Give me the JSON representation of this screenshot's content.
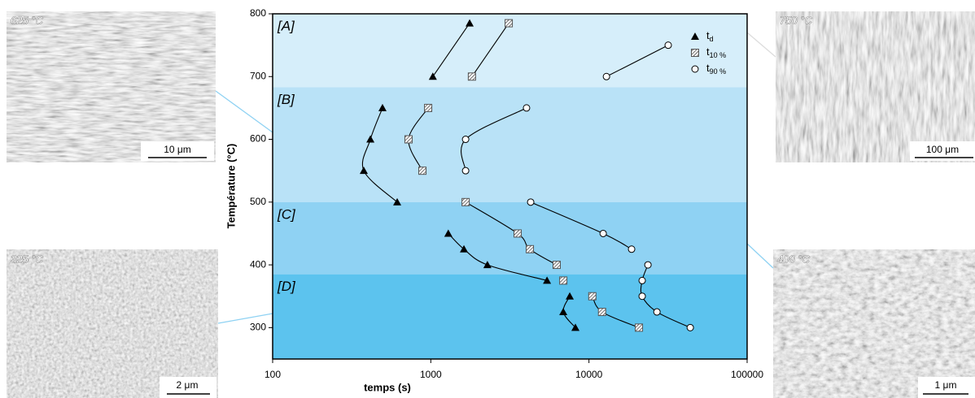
{
  "chart_data": {
    "type": "scatter",
    "xlabel": "temps (s)",
    "ylabel": "Température (°C)",
    "xscale": "log",
    "xlim": [
      100,
      100000
    ],
    "xticks": [
      100,
      1000,
      10000,
      100000
    ],
    "ylim": [
      250,
      800
    ],
    "yticks": [
      300,
      400,
      500,
      600,
      700,
      800
    ],
    "legend": "upper right",
    "regions": [
      {
        "label": "[A]",
        "range": [
          683,
          800
        ],
        "color": "#d6eefa"
      },
      {
        "label": "[B]",
        "range": [
          500,
          683
        ],
        "color": "#b9e2f7"
      },
      {
        "label": "[C]",
        "range": [
          385,
          500
        ],
        "color": "#8fd2f3"
      },
      {
        "label": "[D]",
        "range": [
          250,
          385
        ],
        "color": "#5cc3ee"
      }
    ],
    "series": [
      {
        "name": "t",
        "subscript": "d",
        "marker": "triangle",
        "color": "#000000",
        "x": [
          1760,
          1030,
          495,
          415,
          377,
          613,
          1290,
          1620,
          2280,
          5430,
          7560,
          6880,
          8210
        ],
        "values": [
          785,
          700,
          650,
          600,
          550,
          500,
          450,
          425,
          400,
          375,
          350,
          325,
          300
        ]
      },
      {
        "name": "t",
        "subscript": "10 %",
        "marker": "square",
        "color": "#555555",
        "x": [
          3110,
          1820,
          962,
          723,
          885,
          1660,
          3540,
          4230,
          6250,
          6880,
          10500,
          12100,
          20700
        ],
        "values": [
          785,
          700,
          650,
          600,
          550,
          500,
          450,
          425,
          400,
          375,
          350,
          325,
          300
        ]
      },
      {
        "name": "t",
        "subscript": "90 %",
        "marker": "circle",
        "color": "#ffffff",
        "x": [
          31700,
          12900,
          4030,
          1660,
          1660,
          4280,
          12300,
          18600,
          23600,
          21700,
          21700,
          26900,
          43700
        ],
        "values": [
          750,
          700,
          650,
          600,
          550,
          500,
          450,
          425,
          400,
          375,
          350,
          325,
          300
        ]
      }
    ]
  },
  "micrographs": [
    {
      "temperature": "625 °C",
      "scale": "10 μm"
    },
    {
      "temperature": "750 °C",
      "scale": "100 μm"
    },
    {
      "temperature": "325 °C",
      "scale": "2 μm"
    },
    {
      "temperature": "400 °C",
      "scale": "1 μm"
    }
  ]
}
